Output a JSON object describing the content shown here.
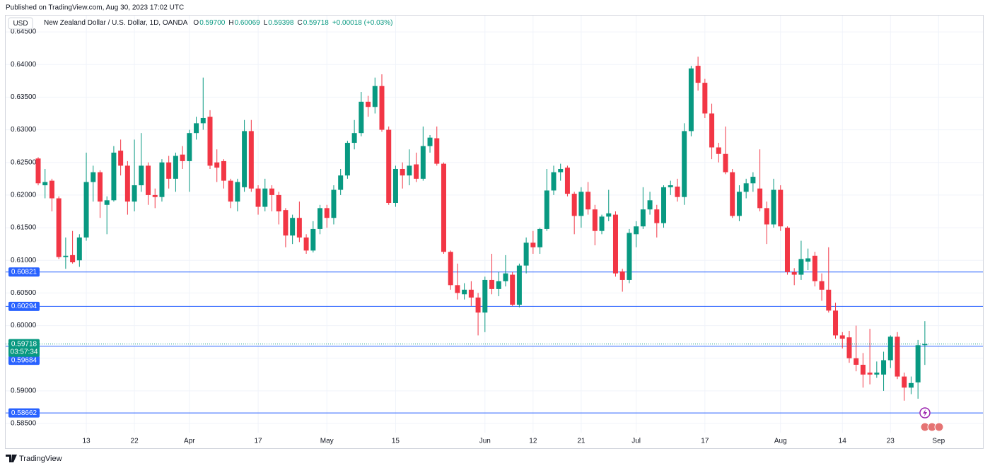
{
  "header": {
    "published": "Published on TradingView.com, Aug 30, 2023 17:02 UTC",
    "currency": "USD",
    "symbol": "New Zealand Dollar / U.S. Dollar, 1D, OANDA",
    "ohlc": [
      {
        "key": "O",
        "value": "0.59700"
      },
      {
        "key": "H",
        "value": "0.60069"
      },
      {
        "key": "L",
        "value": "0.59398"
      },
      {
        "key": "C",
        "value": "0.59718"
      }
    ],
    "change": "+0.00018 (+0.03%)"
  },
  "chart_data": {
    "type": "candlestick",
    "categories": [
      "Mar 2",
      "Mar 3",
      "Mar 6",
      "Mar 7",
      "Mar 8",
      "Mar 9",
      "Mar 10",
      "Mar 13",
      "Mar 14",
      "Mar 15",
      "Mar 16",
      "Mar 17",
      "Mar 20",
      "Mar 21",
      "Mar 22",
      "Mar 23",
      "Mar 24",
      "Mar 27",
      "Mar 28",
      "Mar 29",
      "Mar 30",
      "Mar 31",
      "Apr 3",
      "Apr 4",
      "Apr 5",
      "Apr 6",
      "Apr 7",
      "Apr 10",
      "Apr 11",
      "Apr 12",
      "Apr 13",
      "Apr 14",
      "Apr 17",
      "Apr 18",
      "Apr 19",
      "Apr 20",
      "Apr 21",
      "Apr 24",
      "Apr 25",
      "Apr 26",
      "Apr 27",
      "Apr 28",
      "May 1",
      "May 2",
      "May 3",
      "May 4",
      "May 5",
      "May 8",
      "May 9",
      "May 10",
      "May 11",
      "May 12",
      "May 15",
      "May 16",
      "May 17",
      "May 18",
      "May 19",
      "May 22",
      "May 23",
      "May 24",
      "May 25",
      "May 26",
      "May 29",
      "May 30",
      "May 31",
      "Jun 1",
      "Jun 2",
      "Jun 5",
      "Jun 6",
      "Jun 7",
      "Jun 8",
      "Jun 9",
      "Jun 12",
      "Jun 13",
      "Jun 14",
      "Jun 15",
      "Jun 16",
      "Jun 19",
      "Jun 20",
      "Jun 21",
      "Jun 22",
      "Jun 23",
      "Jun 26",
      "Jun 27",
      "Jun 28",
      "Jun 29",
      "Jun 30",
      "Jul 3",
      "Jul 4",
      "Jul 5",
      "Jul 6",
      "Jul 7",
      "Jul 10",
      "Jul 11",
      "Jul 12",
      "Jul 13",
      "Jul 14",
      "Jul 17",
      "Jul 18",
      "Jul 19",
      "Jul 20",
      "Jul 21",
      "Jul 24",
      "Jul 25",
      "Jul 26",
      "Jul 27",
      "Jul 28",
      "Jul 31",
      "Aug 1",
      "Aug 2",
      "Aug 3",
      "Aug 4",
      "Aug 7",
      "Aug 8",
      "Aug 9",
      "Aug 10",
      "Aug 11",
      "Aug 14",
      "Aug 15",
      "Aug 16",
      "Aug 17",
      "Aug 18",
      "Aug 21",
      "Aug 22",
      "Aug 23",
      "Aug 24",
      "Aug 25",
      "Aug 28",
      "Aug 29",
      "Aug 30",
      "Aug 31",
      "Sep 1"
    ],
    "open": [
      0.6256,
      0.6215,
      0.6222,
      0.6195,
      0.6105,
      0.6108,
      0.61,
      0.6135,
      0.622,
      0.6235,
      0.6185,
      0.6192,
      0.6268,
      0.6245,
      0.619,
      0.6215,
      0.6245,
      0.62,
      0.6197,
      0.625,
      0.6225,
      0.6262,
      0.6252,
      0.6295,
      0.631,
      0.632,
      0.625,
      0.6252,
      0.6222,
      0.619,
      0.6212,
      0.6298,
      0.621,
      0.6182,
      0.621,
      0.62,
      0.6177,
      0.6138,
      0.6165,
      0.6135,
      0.6115,
      0.6148,
      0.618,
      0.6165,
      0.6208,
      0.623,
      0.628,
      0.6295,
      0.6343,
      0.6335,
      0.6367,
      0.63,
      0.6188,
      0.624,
      0.623,
      0.6247,
      0.6225,
      0.6275,
      0.6287,
      0.6248,
      0.6113,
      0.6062,
      0.6048,
      0.6055,
      0.6043,
      0.602,
      0.607,
      0.6056,
      0.6068,
      0.6078,
      0.6032,
      0.6092,
      0.6127,
      0.612,
      0.6148,
      0.6207,
      0.6235,
      0.6242,
      0.6202,
      0.6168,
      0.6205,
      0.6178,
      0.6145,
      0.6167,
      0.617,
      0.6083,
      0.607,
      0.614,
      0.6152,
      0.6178,
      0.6178,
      0.6157,
      0.6212,
      0.6213,
      0.6197,
      0.6298,
      0.6398,
      0.6372,
      0.6325,
      0.6273,
      0.6263,
      0.6235,
      0.6168,
      0.6205,
      0.6218,
      0.621,
      0.618,
      0.6155,
      0.6208,
      0.615,
      0.6082,
      0.6078,
      0.6098,
      0.6107,
      0.6068,
      0.6055,
      0.6023,
      0.5985,
      0.5982,
      0.595,
      0.594,
      0.5928,
      0.5925,
      0.5925,
      0.5947,
      0.5983,
      0.5922,
      0.5905,
      0.5913,
      0.597,
      null,
      null
    ],
    "high": [
      0.6258,
      0.624,
      0.6225,
      0.6198,
      0.6135,
      0.6145,
      0.614,
      0.6265,
      0.6245,
      0.6238,
      0.6198,
      0.6275,
      0.6285,
      0.6252,
      0.6285,
      0.6295,
      0.625,
      0.621,
      0.6255,
      0.626,
      0.6265,
      0.6275,
      0.63,
      0.632,
      0.638,
      0.633,
      0.627,
      0.6255,
      0.6225,
      0.6225,
      0.6315,
      0.6315,
      0.6215,
      0.6225,
      0.6215,
      0.6205,
      0.618,
      0.617,
      0.619,
      0.614,
      0.616,
      0.6185,
      0.6185,
      0.6215,
      0.624,
      0.6283,
      0.6315,
      0.6358,
      0.6352,
      0.638,
      0.6385,
      0.6305,
      0.6245,
      0.625,
      0.627,
      0.6265,
      0.6305,
      0.6292,
      0.6305,
      0.625,
      0.6115,
      0.6095,
      0.6065,
      0.6068,
      0.605,
      0.6075,
      0.611,
      0.6082,
      0.6108,
      0.6082,
      0.6095,
      0.6135,
      0.6145,
      0.615,
      0.624,
      0.6245,
      0.6248,
      0.6245,
      0.6205,
      0.6212,
      0.622,
      0.6185,
      0.617,
      0.6208,
      0.6175,
      0.6087,
      0.6148,
      0.616,
      0.6212,
      0.6205,
      0.6185,
      0.6215,
      0.6222,
      0.6225,
      0.631,
      0.6398,
      0.6412,
      0.6378,
      0.634,
      0.628,
      0.6305,
      0.624,
      0.6215,
      0.6225,
      0.6235,
      0.627,
      0.619,
      0.6225,
      0.6215,
      0.6152,
      0.6088,
      0.613,
      0.6118,
      0.6113,
      0.608,
      0.612,
      0.6035,
      0.599,
      0.5992,
      0.6,
      0.5958,
      0.5995,
      0.5945,
      0.596,
      0.5985,
      0.599,
      0.5928,
      0.5922,
      0.5978,
      0.60069,
      null,
      null
    ],
    "low": [
      0.6215,
      0.6195,
      0.6175,
      0.6102,
      0.6087,
      0.6095,
      0.609,
      0.613,
      0.619,
      0.6165,
      0.614,
      0.619,
      0.623,
      0.617,
      0.6175,
      0.6205,
      0.6185,
      0.618,
      0.619,
      0.621,
      0.6205,
      0.624,
      0.6205,
      0.6285,
      0.63,
      0.624,
      0.622,
      0.621,
      0.618,
      0.6175,
      0.6205,
      0.6205,
      0.617,
      0.6175,
      0.6175,
      0.6155,
      0.612,
      0.6125,
      0.6128,
      0.611,
      0.6112,
      0.614,
      0.615,
      0.6155,
      0.62,
      0.6225,
      0.627,
      0.629,
      0.632,
      0.6325,
      0.6297,
      0.6185,
      0.6182,
      0.621,
      0.6215,
      0.622,
      0.6222,
      0.6265,
      0.6245,
      0.611,
      0.6055,
      0.604,
      0.604,
      0.603,
      0.5985,
      0.599,
      0.6048,
      0.6045,
      0.606,
      0.603,
      0.6028,
      0.608,
      0.611,
      0.611,
      0.6145,
      0.62,
      0.6222,
      0.6198,
      0.614,
      0.615,
      0.617,
      0.6123,
      0.614,
      0.616,
      0.6075,
      0.6052,
      0.6065,
      0.612,
      0.6148,
      0.617,
      0.6135,
      0.615,
      0.62,
      0.619,
      0.6185,
      0.629,
      0.636,
      0.6318,
      0.6255,
      0.625,
      0.6232,
      0.6165,
      0.616,
      0.6195,
      0.6205,
      0.6175,
      0.6125,
      0.615,
      0.6145,
      0.6078,
      0.6062,
      0.607,
      0.6085,
      0.606,
      0.6038,
      0.602,
      0.598,
      0.5965,
      0.5943,
      0.593,
      0.5905,
      0.591,
      0.592,
      0.59,
      0.5935,
      0.5918,
      0.5885,
      0.5895,
      0.5888,
      0.59398,
      null,
      null
    ],
    "close": [
      0.6218,
      0.622,
      0.6195,
      0.6105,
      0.6107,
      0.6097,
      0.6135,
      0.622,
      0.6235,
      0.619,
      0.6192,
      0.6265,
      0.6245,
      0.619,
      0.6215,
      0.6245,
      0.62,
      0.6197,
      0.625,
      0.6225,
      0.626,
      0.6252,
      0.6295,
      0.631,
      0.6318,
      0.6245,
      0.6242,
      0.6222,
      0.619,
      0.622,
      0.6298,
      0.621,
      0.6182,
      0.621,
      0.62,
      0.6175,
      0.6138,
      0.6165,
      0.6135,
      0.6115,
      0.6148,
      0.618,
      0.6165,
      0.6208,
      0.623,
      0.628,
      0.6295,
      0.6343,
      0.6335,
      0.6367,
      0.63,
      0.6188,
      0.624,
      0.623,
      0.6245,
      0.6225,
      0.6275,
      0.6288,
      0.6248,
      0.6113,
      0.6062,
      0.605,
      0.6055,
      0.6043,
      0.602,
      0.607,
      0.6056,
      0.6068,
      0.608,
      0.6032,
      0.6092,
      0.6127,
      0.612,
      0.6148,
      0.6207,
      0.6235,
      0.624,
      0.6202,
      0.6168,
      0.6205,
      0.6178,
      0.6145,
      0.6167,
      0.6172,
      0.608,
      0.607,
      0.6142,
      0.6152,
      0.6178,
      0.6192,
      0.6157,
      0.6212,
      0.6215,
      0.6197,
      0.6298,
      0.6394,
      0.6372,
      0.6325,
      0.6273,
      0.6263,
      0.6235,
      0.6168,
      0.6205,
      0.6218,
      0.6228,
      0.618,
      0.6155,
      0.6208,
      0.6152,
      0.6082,
      0.6078,
      0.6102,
      0.6103,
      0.6068,
      0.6055,
      0.6023,
      0.5985,
      0.598,
      0.595,
      0.594,
      0.5925,
      0.5925,
      0.5928,
      0.5947,
      0.5983,
      0.5922,
      0.5905,
      0.5912,
      0.597,
      0.59718,
      null,
      null
    ],
    "up_color": "#089981",
    "down_color": "#f23645",
    "ylim": [
      0.5836,
      0.6475
    ],
    "yticks": [
      {
        "value": 0.585,
        "label": "0.58500"
      },
      {
        "value": 0.59,
        "label": "0.59000"
      },
      {
        "value": 0.595,
        "label": "0.59500"
      },
      {
        "value": 0.6,
        "label": "0.60000"
      },
      {
        "value": 0.605,
        "label": "0.60500"
      },
      {
        "value": 0.61,
        "label": "0.61000"
      },
      {
        "value": 0.615,
        "label": "0.61500"
      },
      {
        "value": 0.62,
        "label": "0.62000"
      },
      {
        "value": 0.625,
        "label": "0.62500"
      },
      {
        "value": 0.63,
        "label": "0.63000"
      },
      {
        "value": 0.635,
        "label": "0.63500"
      },
      {
        "value": 0.64,
        "label": "0.64000"
      },
      {
        "value": 0.645,
        "label": "0.64500"
      }
    ],
    "xticks": [
      {
        "value": "Mar 13",
        "label": "13"
      },
      {
        "value": "Mar 22",
        "label": "22"
      },
      {
        "value": "Apr 3",
        "label": "Apr"
      },
      {
        "value": "Apr 17",
        "label": "17"
      },
      {
        "value": "May 1",
        "label": "May"
      },
      {
        "value": "May 15",
        "label": "15"
      },
      {
        "value": "Jun 1",
        "label": "Jun"
      },
      {
        "value": "Jun 12",
        "label": "12"
      },
      {
        "value": "Jun 21",
        "label": "21"
      },
      {
        "value": "Jul 3",
        "label": "Jul"
      },
      {
        "value": "Jul 17",
        "label": "17"
      },
      {
        "value": "Aug 1",
        "label": "Aug"
      },
      {
        "value": "Aug 14",
        "label": "14"
      },
      {
        "value": "Aug 23",
        "label": "23"
      },
      {
        "value": "Sep 1",
        "label": "Sep"
      }
    ],
    "grid": true,
    "price_lines": [
      {
        "value": 0.60821,
        "label": "0.60821",
        "color": "#2962ff"
      },
      {
        "value": 0.60294,
        "label": "0.60294",
        "color": "#2962ff"
      },
      {
        "value": 0.59684,
        "label": "0.59684",
        "color": "#2962ff"
      },
      {
        "value": 0.58662,
        "label": "0.58662",
        "color": "#2962ff"
      }
    ],
    "last_price": {
      "value": 0.59718,
      "label": "0.59718",
      "countdown": "03:57:34",
      "color": "#089981"
    }
  },
  "footer": {
    "brand": "TradingView"
  }
}
